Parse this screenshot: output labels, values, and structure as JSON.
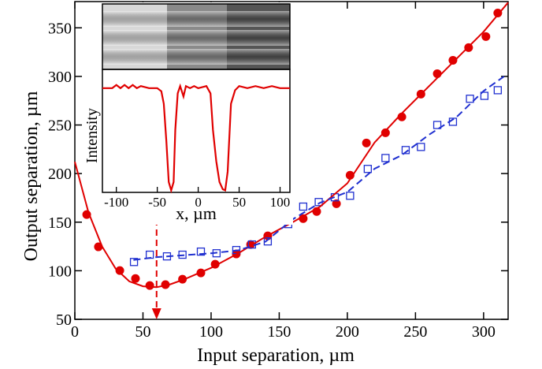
{
  "chart_data": [
    {
      "type": "scatter",
      "x_label": "Input separation, µm",
      "y_label": "Output separation, µm",
      "xlim": [
        0,
        318
      ],
      "ylim": [
        50,
        377
      ],
      "xticks": [
        0,
        50,
        100,
        150,
        200,
        250,
        300
      ],
      "yticks": [
        50,
        100,
        150,
        200,
        250,
        300,
        350
      ],
      "series": [
        {
          "color": "#e00000",
          "marker": "circle",
          "x": [
            8.7,
            17.3,
            33,
            44.5,
            55,
            66.5,
            79,
            92.5,
            103,
            118.5,
            129,
            141.6,
            167.6,
            177.5,
            192,
            202,
            214,
            228,
            240,
            254,
            266,
            277.5,
            289,
            301.7,
            310.4
          ],
          "values": [
            157.8,
            124.6,
            100.2,
            92,
            84.8,
            85.7,
            91.3,
            97.8,
            106.7,
            117.3,
            127,
            135.9,
            153.7,
            161,
            169,
            198.3,
            231.5,
            242,
            258.3,
            281.8,
            302.8,
            316.6,
            329.6,
            341,
            365.2
          ]
        },
        {
          "color": "#2030d0",
          "marker": "square",
          "x": [
            43.4,
            55,
            67.6,
            79,
            92.5,
            104,
            118.5,
            130,
            141.6,
            156.6,
            167.6,
            179,
            190.8,
            202,
            215,
            228,
            242.8,
            254,
            266,
            277.5,
            290,
            300.6,
            310.4
          ],
          "values": [
            109,
            116.5,
            114.8,
            116.5,
            119.7,
            118,
            121.3,
            127,
            130.2,
            148,
            166,
            170.7,
            175.6,
            177.2,
            204.8,
            216,
            224.2,
            227.4,
            250,
            253.3,
            277,
            280,
            285.8
          ]
        },
        {
          "color": "#e00000",
          "line": "solid",
          "x": [
            0,
            10,
            20,
            30,
            40,
            50,
            60,
            70,
            80,
            100,
            120,
            140,
            160,
            180,
            200,
            220,
            240,
            260,
            280,
            300,
            318
          ],
          "values": [
            212,
            160,
            125,
            102,
            89,
            84,
            83,
            86,
            91,
            103,
            118,
            135,
            150,
            166,
            190,
            232,
            262,
            290,
            318,
            346,
            376
          ]
        },
        {
          "color": "#2030d0",
          "line": "dashed",
          "x": [
            43,
            60,
            80,
            100,
            120,
            140,
            160,
            180,
            200,
            220,
            240,
            260,
            280,
            300,
            315
          ],
          "values": [
            111,
            114,
            116,
            118,
            121,
            130,
            153,
            170,
            181,
            205,
            219,
            240,
            258,
            285,
            300
          ]
        }
      ],
      "arrow": {
        "color": "#e00000",
        "x": 60,
        "y": [
          50,
          153
        ]
      }
    },
    {
      "type": "line",
      "x_label": "x, µm",
      "y_label": "Intensity",
      "xlim": [
        -117,
        112
      ],
      "ylim": [
        0,
        1.18
      ],
      "xticks": [
        -100,
        -50,
        0,
        50,
        100
      ],
      "series": [
        {
          "color": "#e00000",
          "x": [
            -117,
            -105,
            -100,
            -95,
            -90,
            -85,
            -80,
            -75,
            -70,
            -60,
            -50,
            -45,
            -42,
            -39,
            -36,
            -33,
            -30,
            -28,
            -25,
            -22,
            -18,
            -15,
            -10,
            -5,
            0,
            10,
            15,
            18,
            22,
            26,
            30,
            33,
            36,
            40,
            45,
            50,
            60,
            70,
            80,
            90,
            100,
            112
          ],
          "values": [
            1.0,
            1.0,
            1.03,
            1.0,
            1.03,
            1.0,
            1.03,
            1.0,
            1.02,
            1.0,
            1.0,
            0.97,
            0.85,
            0.5,
            0.1,
            0.02,
            0.1,
            0.6,
            0.95,
            1.02,
            0.92,
            1.02,
            1.0,
            1.02,
            1.0,
            1.02,
            0.95,
            0.6,
            0.3,
            0.1,
            0.03,
            0.02,
            0.2,
            0.85,
            0.98,
            1.02,
            1.0,
            1.02,
            1.0,
            1.02,
            1.0,
            1.0
          ]
        }
      ]
    }
  ]
}
